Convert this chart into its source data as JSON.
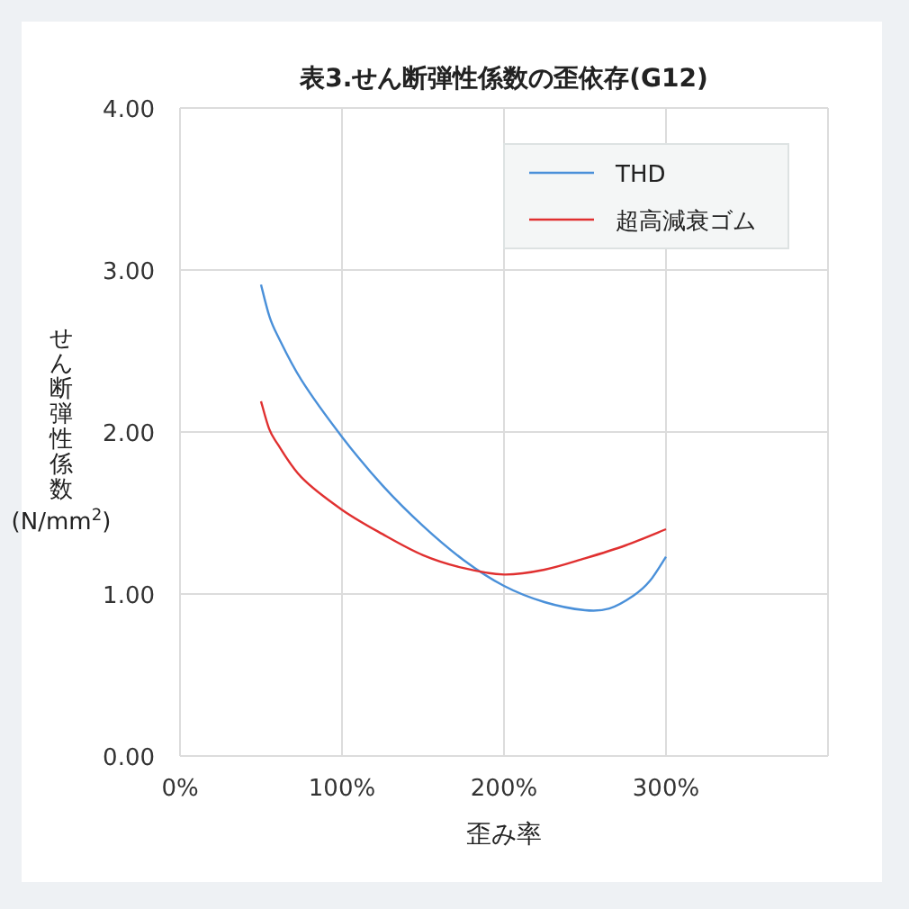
{
  "chart_data": {
    "type": "line",
    "title": "表3.せん断弾性係数の歪依存(G12)",
    "xlabel": "歪み率",
    "ylabel": "せん断弾性係数(N/mm$^{2}$)",
    "xlim": [
      0,
      400
    ],
    "ylim": [
      0,
      4
    ],
    "xticks": [
      {
        "value": 0,
        "label": "0%"
      },
      {
        "value": 100,
        "label": "100%"
      },
      {
        "value": 200,
        "label": "200%"
      },
      {
        "value": 300,
        "label": "300%"
      },
      {
        "value": 400,
        "label": null
      }
    ],
    "yticks": [
      {
        "value": 0,
        "label": "0.00"
      },
      {
        "value": 1,
        "label": "1.00"
      },
      {
        "value": 2,
        "label": "2.00"
      },
      {
        "value": 3,
        "label": "3.00"
      },
      {
        "value": 4,
        "label": "4.00"
      }
    ],
    "grid": true,
    "legend": "top right",
    "marker": "none",
    "line_style": "solid",
    "series": [
      {
        "name": "THD",
        "color": "#4a90d9",
        "x": [
          50,
          55,
          60,
          75,
          100,
          125,
          150,
          175,
          200,
          225,
          250,
          265,
          280,
          290,
          300
        ],
        "values": [
          2.91,
          2.72,
          2.6,
          2.32,
          1.97,
          1.67,
          1.42,
          1.21,
          1.05,
          0.95,
          0.9,
          0.91,
          0.99,
          1.08,
          1.23
        ]
      },
      {
        "name": "超高減衰ゴム",
        "color": "#e03030",
        "x": [
          50,
          55,
          60,
          75,
          100,
          125,
          150,
          175,
          200,
          225,
          250,
          275,
          300
        ],
        "values": [
          2.19,
          2.02,
          1.93,
          1.72,
          1.52,
          1.37,
          1.24,
          1.16,
          1.12,
          1.15,
          1.22,
          1.3,
          1.4
        ]
      }
    ]
  }
}
